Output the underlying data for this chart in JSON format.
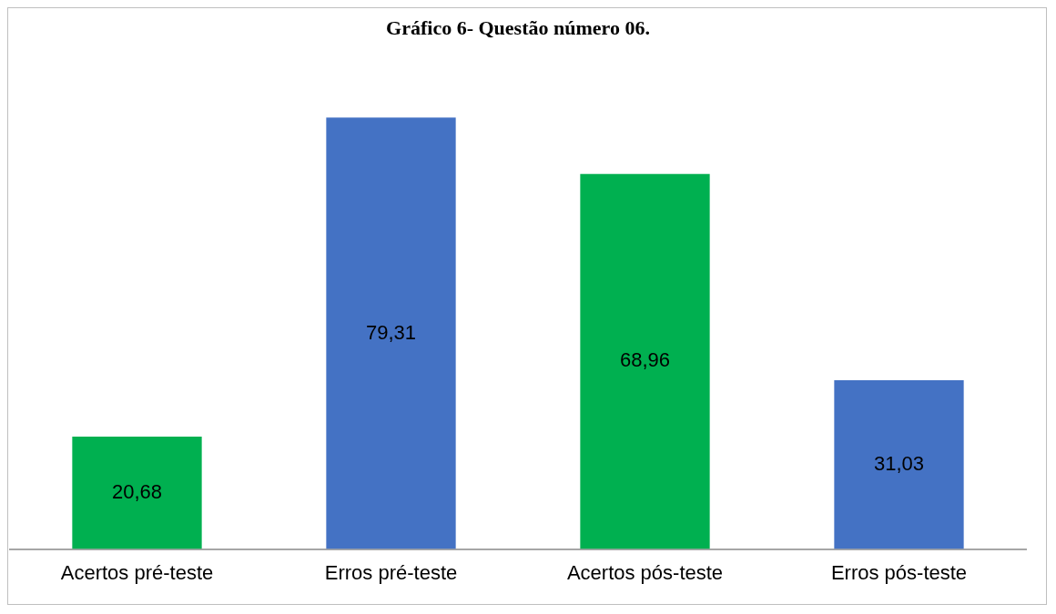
{
  "chart_data": {
    "type": "bar",
    "title": "Gráfico 6- Questão número 06.",
    "categories": [
      "Acertos pré-teste",
      "Erros pré-teste",
      "Acertos pós-teste",
      "Erros pós-teste"
    ],
    "values": [
      20.68,
      79.31,
      68.96,
      31.03
    ],
    "colors": [
      "#00b050",
      "#4472c4",
      "#00b050",
      "#4472c4"
    ],
    "data_labels": true,
    "value_labels": [
      "20,68",
      "79,31",
      "68,96",
      "31,03"
    ],
    "tick_labels": "x",
    "grid": false,
    "legend": false
  }
}
